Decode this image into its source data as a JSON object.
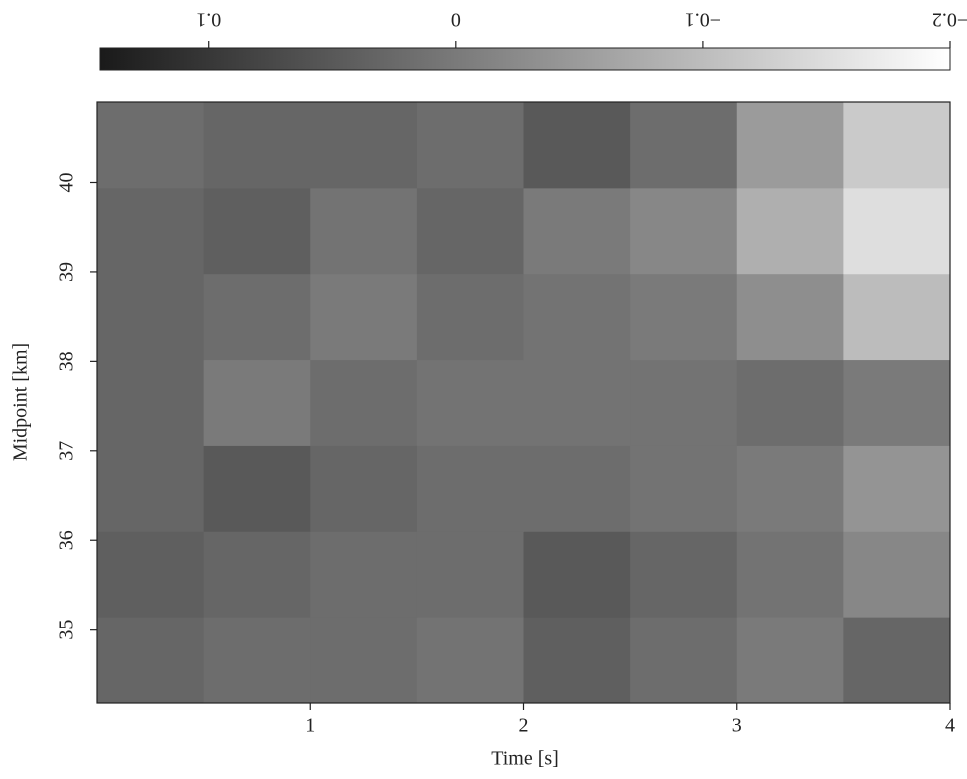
{
  "chart_data": {
    "type": "heatmap",
    "x_label": "Time [s]",
    "y_label": "Midpoint [km]",
    "xlim": [
      0,
      4
    ],
    "xticks": [
      1,
      2,
      3,
      4
    ],
    "ylim": [
      34.18,
      40.9
    ],
    "yticks": [
      35,
      36,
      37,
      38,
      39,
      40
    ],
    "x": [
      0.25,
      0.75,
      1.25,
      1.75,
      2.25,
      2.75,
      3.25,
      3.75
    ],
    "y": [
      34.66,
      35.62,
      36.58,
      37.54,
      38.5,
      39.46,
      40.42
    ],
    "z": [
      [
        0.03,
        0.02,
        0.02,
        0.01,
        0.04,
        0.02,
        0.0,
        0.03
      ],
      [
        0.04,
        0.03,
        0.02,
        0.02,
        0.05,
        0.03,
        0.01,
        -0.02
      ],
      [
        0.03,
        0.05,
        0.03,
        0.02,
        0.02,
        0.01,
        0.0,
        -0.04
      ],
      [
        0.03,
        0.0,
        0.02,
        0.01,
        0.01,
        0.01,
        0.02,
        0.0
      ],
      [
        0.03,
        0.02,
        0.0,
        0.02,
        0.01,
        0.0,
        -0.03,
        -0.1
      ],
      [
        0.03,
        0.04,
        0.01,
        0.03,
        0.0,
        -0.02,
        -0.08,
        -0.15
      ],
      [
        0.02,
        0.03,
        0.03,
        0.02,
        0.05,
        0.02,
        -0.05,
        -0.12
      ]
    ],
    "colormap": [
      "#1a1a1a",
      "#ffffff"
    ],
    "clim": [
      0.144,
      -0.2
    ],
    "cticks": [
      0.1,
      0,
      {
        "value": -0.1,
        "label": "−0.1"
      },
      {
        "value": -0.2,
        "label": "−0.2"
      }
    ]
  }
}
